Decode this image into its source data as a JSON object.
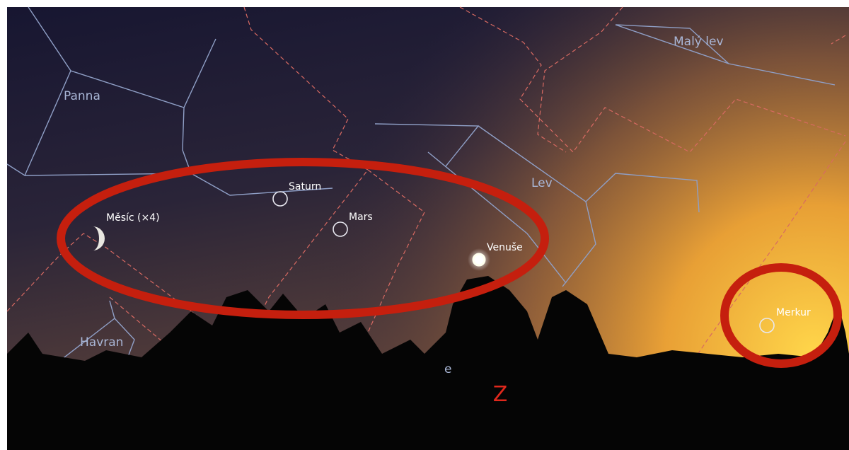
{
  "constellations": [
    {
      "label": "Panna"
    },
    {
      "label": "Malý lev"
    },
    {
      "label": "Lev"
    },
    {
      "label": "Havran"
    },
    {
      "label": "e"
    }
  ],
  "objects": [
    {
      "label": "Saturn"
    },
    {
      "label": "Mars"
    },
    {
      "label": "Měsíc (×4)"
    },
    {
      "label": "Venuše"
    },
    {
      "label": "Merkur"
    }
  ],
  "compass": "Z"
}
